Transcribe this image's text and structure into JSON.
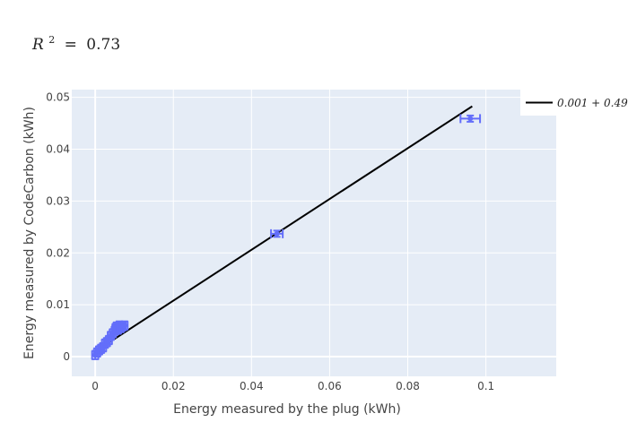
{
  "chart_data": {
    "type": "scatter",
    "title": "R^2 = 0.73",
    "title_parts": {
      "symbol": "R",
      "exponent": "2",
      "equals": "=",
      "value": "0.73"
    },
    "xlabel": "Energy measured by the plug (kWh)",
    "ylabel": "Energy measured by CodeCarbon (kWh)",
    "xlim": [
      -0.006,
      0.118
    ],
    "ylim": [
      -0.0038,
      0.0515
    ],
    "xticks": [
      0,
      0.02,
      0.04,
      0.06,
      0.08,
      0.1
    ],
    "xtick_labels": [
      "0",
      "0.02",
      "0.04",
      "0.06",
      "0.08",
      "0.1"
    ],
    "yticks": [
      0,
      0.01,
      0.02,
      0.03,
      0.04,
      0.05
    ],
    "ytick_labels": [
      "0",
      "0.01",
      "0.02",
      "0.03",
      "0.04",
      "0.05"
    ],
    "grid": true,
    "legend_position": "top-right",
    "marker_color": "#636efa",
    "line_color": "#000000",
    "plot_background": "#e5ecf6",
    "points": [
      {
        "x": 0.0,
        "y": 0.0003,
        "ex": 0.0008,
        "ey": 0.0008
      },
      {
        "x": 0.0005,
        "y": 0.0008,
        "ex": 0.0008,
        "ey": 0.0008
      },
      {
        "x": 0.001,
        "y": 0.0012,
        "ex": 0.0008,
        "ey": 0.0008
      },
      {
        "x": 0.0015,
        "y": 0.0015,
        "ex": 0.0008,
        "ey": 0.0008
      },
      {
        "x": 0.002,
        "y": 0.0018,
        "ex": 0.0008,
        "ey": 0.0008
      },
      {
        "x": 0.0025,
        "y": 0.0025,
        "ex": 0.0008,
        "ey": 0.0008
      },
      {
        "x": 0.003,
        "y": 0.0028,
        "ex": 0.0008,
        "ey": 0.0008
      },
      {
        "x": 0.0035,
        "y": 0.0032,
        "ex": 0.0008,
        "ey": 0.0008
      },
      {
        "x": 0.004,
        "y": 0.004,
        "ex": 0.0008,
        "ey": 0.0008
      },
      {
        "x": 0.0045,
        "y": 0.0045,
        "ex": 0.0008,
        "ey": 0.0008
      },
      {
        "x": 0.005,
        "y": 0.005,
        "ex": 0.0008,
        "ey": 0.0008
      },
      {
        "x": 0.0052,
        "y": 0.0055,
        "ex": 0.0008,
        "ey": 0.0008
      },
      {
        "x": 0.0055,
        "y": 0.0058,
        "ex": 0.0008,
        "ey": 0.0008
      },
      {
        "x": 0.0058,
        "y": 0.0052,
        "ex": 0.0008,
        "ey": 0.0008
      },
      {
        "x": 0.0062,
        "y": 0.006,
        "ex": 0.0008,
        "ey": 0.0008
      },
      {
        "x": 0.0065,
        "y": 0.0055,
        "ex": 0.0008,
        "ey": 0.0008
      },
      {
        "x": 0.007,
        "y": 0.0058,
        "ex": 0.0008,
        "ey": 0.0008
      },
      {
        "x": 0.0075,
        "y": 0.006,
        "ex": 0.0008,
        "ey": 0.0008
      },
      {
        "x": 0.0465,
        "y": 0.0237,
        "ex": 0.0015,
        "ey": 0.0006
      },
      {
        "x": 0.096,
        "y": 0.0459,
        "ex": 0.0025,
        "ey": 0.0006
      }
    ],
    "fit": {
      "name": "0.001 + 0.49x",
      "intercept": 0.001,
      "slope": 0.49,
      "x_range": [
        0,
        0.0965
      ]
    }
  }
}
